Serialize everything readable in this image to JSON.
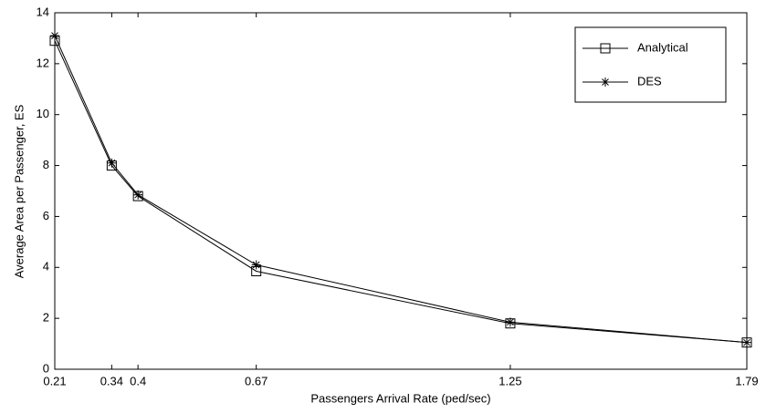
{
  "chart_data": {
    "type": "line",
    "x_label": "Passengers Arrival Rate (ped/sec)",
    "y_label": "Average Area per Passenger, ES",
    "x": [
      0.21,
      0.34,
      0.4,
      0.67,
      1.25,
      1.79
    ],
    "series": [
      {
        "name": "Analytical",
        "color": "#000000",
        "marker": "square",
        "values": [
          12.9,
          8.0,
          6.8,
          3.85,
          1.8,
          1.05
        ]
      },
      {
        "name": "DES",
        "color": "#000000",
        "marker": "asterisk",
        "values": [
          13.1,
          8.1,
          6.85,
          4.1,
          1.85,
          1.05
        ]
      }
    ],
    "xlim": [
      0.21,
      1.79
    ],
    "xticks": [
      0.21,
      0.34,
      0.4,
      0.67,
      1.25,
      1.79
    ],
    "ylim": [
      0,
      14
    ],
    "yticks": [
      0,
      2,
      4,
      6,
      8,
      10,
      12,
      14
    ],
    "grid": false,
    "legend": "upper right"
  }
}
